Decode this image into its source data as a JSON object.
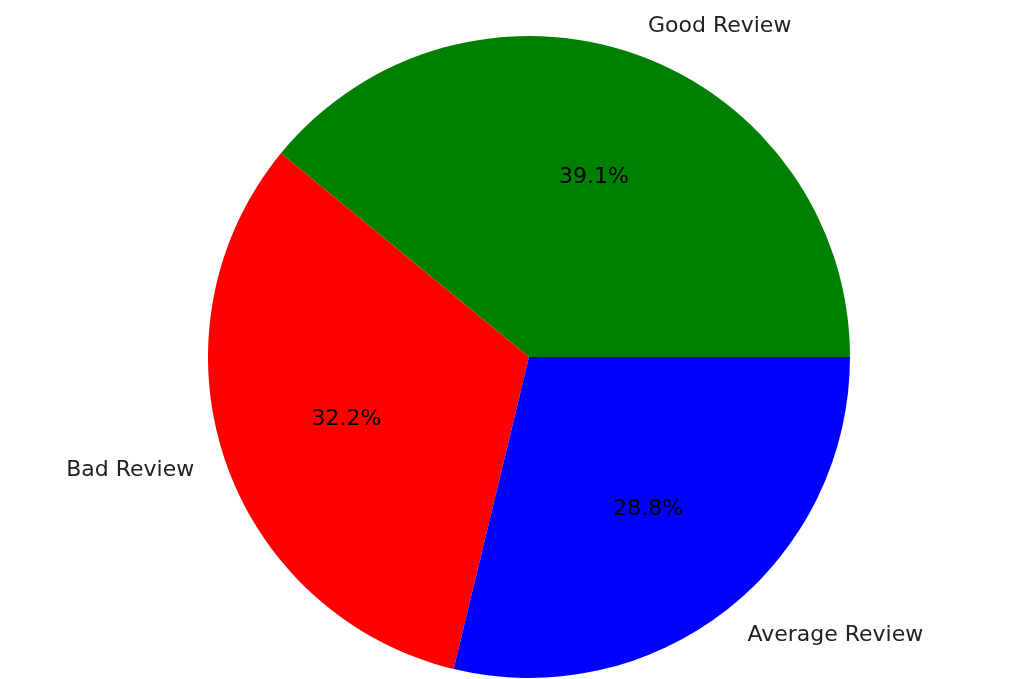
{
  "chart_data": {
    "type": "pie",
    "categories": [
      "Good Review",
      "Bad Review",
      "Average Review"
    ],
    "values": [
      39.1,
      32.2,
      28.8
    ],
    "colors": [
      "#008000",
      "#ff0000",
      "#0000ff"
    ],
    "value_labels": [
      "39.1%",
      "32.2%",
      "28.8%"
    ]
  }
}
